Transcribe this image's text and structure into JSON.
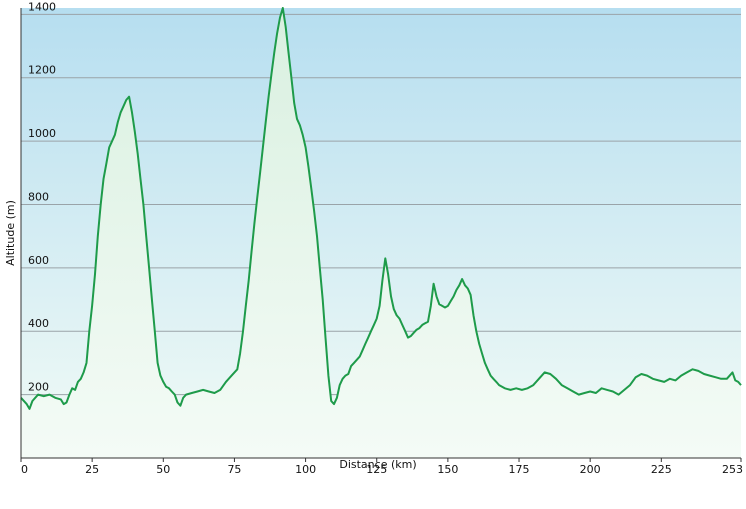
{
  "chart_data": {
    "type": "area",
    "xlabel": "Distance  (km)",
    "ylabel": "Altitude (m)",
    "x_ticks": [
      "0",
      "25",
      "50",
      "75",
      "100",
      "125",
      "150",
      "175",
      "200",
      "225",
      "253"
    ],
    "y_ticks": [
      "200",
      "400",
      "600",
      "800",
      "1000",
      "1200",
      "1400"
    ],
    "xlim": [
      0,
      253
    ],
    "ylim": [
      0,
      1420
    ],
    "grid": true,
    "colors": {
      "line": "#1e9b4a",
      "fill_top": "#d9f0e0",
      "fill_bottom": "#f4fbf6",
      "bg_top": "#b6def0",
      "bg_bottom": "#f2fbf6",
      "grid": "#9aa3a8"
    },
    "series": [
      {
        "points": [
          [
            0,
            190
          ],
          [
            2,
            170
          ],
          [
            3,
            155
          ],
          [
            4,
            180
          ],
          [
            6,
            200
          ],
          [
            8,
            195
          ],
          [
            10,
            200
          ],
          [
            12,
            190
          ],
          [
            14,
            185
          ],
          [
            15,
            170
          ],
          [
            16,
            175
          ],
          [
            17,
            200
          ],
          [
            18,
            220
          ],
          [
            19,
            215
          ],
          [
            20,
            240
          ],
          [
            21,
            250
          ],
          [
            22,
            270
          ],
          [
            23,
            300
          ],
          [
            24,
            400
          ],
          [
            25,
            480
          ],
          [
            26,
            580
          ],
          [
            27,
            700
          ],
          [
            28,
            800
          ],
          [
            29,
            880
          ],
          [
            30,
            930
          ],
          [
            31,
            980
          ],
          [
            32,
            1000
          ],
          [
            33,
            1020
          ],
          [
            34,
            1060
          ],
          [
            35,
            1090
          ],
          [
            36,
            1110
          ],
          [
            37,
            1130
          ],
          [
            38,
            1140
          ],
          [
            39,
            1090
          ],
          [
            40,
            1030
          ],
          [
            41,
            960
          ],
          [
            42,
            880
          ],
          [
            43,
            800
          ],
          [
            44,
            700
          ],
          [
            45,
            600
          ],
          [
            46,
            500
          ],
          [
            47,
            400
          ],
          [
            48,
            300
          ],
          [
            49,
            260
          ],
          [
            50,
            240
          ],
          [
            51,
            225
          ],
          [
            52,
            220
          ],
          [
            53,
            210
          ],
          [
            54,
            200
          ],
          [
            55,
            175
          ],
          [
            56,
            165
          ],
          [
            57,
            190
          ],
          [
            58,
            200
          ],
          [
            60,
            205
          ],
          [
            62,
            210
          ],
          [
            64,
            215
          ],
          [
            66,
            210
          ],
          [
            68,
            205
          ],
          [
            70,
            215
          ],
          [
            72,
            240
          ],
          [
            74,
            260
          ],
          [
            76,
            280
          ],
          [
            77,
            330
          ],
          [
            78,
            400
          ],
          [
            79,
            480
          ],
          [
            80,
            560
          ],
          [
            81,
            650
          ],
          [
            82,
            740
          ],
          [
            83,
            820
          ],
          [
            84,
            900
          ],
          [
            85,
            980
          ],
          [
            86,
            1060
          ],
          [
            87,
            1140
          ],
          [
            88,
            1210
          ],
          [
            89,
            1280
          ],
          [
            90,
            1340
          ],
          [
            91,
            1390
          ],
          [
            92,
            1420
          ],
          [
            93,
            1360
          ],
          [
            94,
            1280
          ],
          [
            95,
            1200
          ],
          [
            96,
            1120
          ],
          [
            97,
            1070
          ],
          [
            98,
            1050
          ],
          [
            99,
            1020
          ],
          [
            100,
            980
          ],
          [
            101,
            920
          ],
          [
            102,
            850
          ],
          [
            103,
            780
          ],
          [
            104,
            700
          ],
          [
            105,
            600
          ],
          [
            106,
            500
          ],
          [
            107,
            380
          ],
          [
            108,
            260
          ],
          [
            109,
            180
          ],
          [
            110,
            170
          ],
          [
            111,
            190
          ],
          [
            112,
            230
          ],
          [
            113,
            250
          ],
          [
            114,
            260
          ],
          [
            115,
            265
          ],
          [
            116,
            290
          ],
          [
            117,
            300
          ],
          [
            118,
            310
          ],
          [
            119,
            320
          ],
          [
            120,
            340
          ],
          [
            121,
            360
          ],
          [
            122,
            380
          ],
          [
            123,
            400
          ],
          [
            124,
            420
          ],
          [
            125,
            440
          ],
          [
            126,
            480
          ],
          [
            127,
            560
          ],
          [
            128,
            630
          ],
          [
            129,
            580
          ],
          [
            130,
            510
          ],
          [
            131,
            470
          ],
          [
            132,
            450
          ],
          [
            133,
            440
          ],
          [
            134,
            420
          ],
          [
            135,
            400
          ],
          [
            136,
            380
          ],
          [
            137,
            385
          ],
          [
            138,
            395
          ],
          [
            139,
            405
          ],
          [
            140,
            410
          ],
          [
            141,
            420
          ],
          [
            142,
            425
          ],
          [
            143,
            430
          ],
          [
            144,
            480
          ],
          [
            145,
            550
          ],
          [
            146,
            510
          ],
          [
            147,
            485
          ],
          [
            148,
            480
          ],
          [
            149,
            475
          ],
          [
            150,
            480
          ],
          [
            151,
            495
          ],
          [
            152,
            510
          ],
          [
            153,
            530
          ],
          [
            154,
            545
          ],
          [
            155,
            565
          ],
          [
            156,
            545
          ],
          [
            157,
            535
          ],
          [
            158,
            515
          ],
          [
            159,
            450
          ],
          [
            160,
            400
          ],
          [
            161,
            360
          ],
          [
            162,
            330
          ],
          [
            163,
            300
          ],
          [
            164,
            280
          ],
          [
            165,
            260
          ],
          [
            166,
            250
          ],
          [
            167,
            240
          ],
          [
            168,
            230
          ],
          [
            170,
            220
          ],
          [
            172,
            215
          ],
          [
            174,
            220
          ],
          [
            176,
            215
          ],
          [
            178,
            220
          ],
          [
            180,
            230
          ],
          [
            182,
            250
          ],
          [
            184,
            270
          ],
          [
            186,
            265
          ],
          [
            188,
            250
          ],
          [
            190,
            230
          ],
          [
            192,
            220
          ],
          [
            194,
            210
          ],
          [
            196,
            200
          ],
          [
            198,
            205
          ],
          [
            200,
            210
          ],
          [
            202,
            205
          ],
          [
            204,
            220
          ],
          [
            206,
            215
          ],
          [
            208,
            210
          ],
          [
            210,
            200
          ],
          [
            212,
            215
          ],
          [
            214,
            230
          ],
          [
            216,
            255
          ],
          [
            218,
            265
          ],
          [
            220,
            260
          ],
          [
            222,
            250
          ],
          [
            224,
            245
          ],
          [
            226,
            240
          ],
          [
            228,
            250
          ],
          [
            230,
            245
          ],
          [
            232,
            260
          ],
          [
            234,
            270
          ],
          [
            236,
            280
          ],
          [
            238,
            275
          ],
          [
            240,
            265
          ],
          [
            242,
            260
          ],
          [
            244,
            255
          ],
          [
            246,
            250
          ],
          [
            248,
            250
          ],
          [
            250,
            270
          ],
          [
            251,
            245
          ],
          [
            252,
            240
          ],
          [
            253,
            230
          ]
        ]
      }
    ]
  }
}
